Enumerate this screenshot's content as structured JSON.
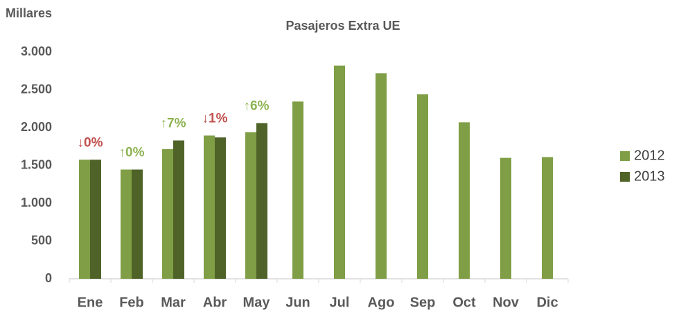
{
  "chart_data": {
    "type": "bar",
    "title": "Pasajeros Extra UE",
    "y_axis_label": "Millares",
    "categories": [
      "Ene",
      "Feb",
      "Mar",
      "Abr",
      "May",
      "Jun",
      "Jul",
      "Ago",
      "Sep",
      "Oct",
      "Nov",
      "Dic"
    ],
    "series": [
      {
        "name": "2012",
        "color": "#7f9e45",
        "values": [
          1575,
          1445,
          1715,
          1895,
          1940,
          2345,
          2820,
          2720,
          2440,
          2070,
          1600,
          1610
        ]
      },
      {
        "name": "2013",
        "color": "#4f6228",
        "values": [
          1575,
          1445,
          1830,
          1870,
          2060,
          null,
          null,
          null,
          null,
          null,
          null,
          null
        ]
      }
    ],
    "annotations": [
      {
        "text": "↓0%",
        "color": "#c0504d"
      },
      {
        "text": "↑0%",
        "color": "#8db352"
      },
      {
        "text": "↑7%",
        "color": "#8db352"
      },
      {
        "text": "↓1%",
        "color": "#c0504d"
      },
      {
        "text": "↑6%",
        "color": "#8db352"
      }
    ],
    "ylim": [
      0,
      3000
    ],
    "yticks": [
      0,
      500,
      {
        "value": 1000,
        "label": "1.000"
      },
      {
        "value": 1500,
        "label": "1.500"
      },
      {
        "value": 2000,
        "label": "2.000"
      },
      {
        "value": 2500,
        "label": "2.500"
      },
      {
        "value": 3000,
        "label": "3.000"
      }
    ],
    "grid": false,
    "legend": "right"
  }
}
